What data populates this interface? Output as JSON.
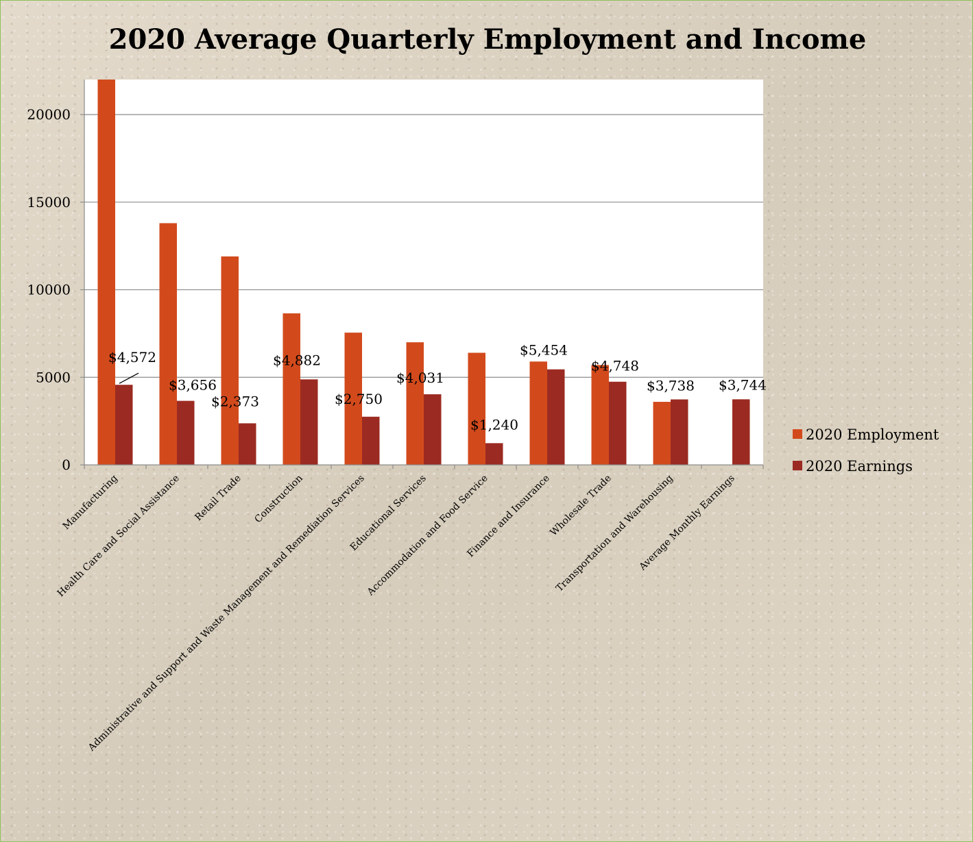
{
  "chart_data": {
    "type": "bar",
    "title": "2020 Average Quarterly Employment and Income",
    "categories": [
      "Manufacturing",
      "Health Care and Social Assistance",
      "Retail Trade",
      "Construction",
      "Administrative and Support and Waste Management and Remediation Services",
      "Educational Services",
      "Accommodation and Food Service",
      "Finance and Insurance",
      "Wholesale Trade",
      "Transportation and Warehousing",
      "Average Monthly Earnings"
    ],
    "series": [
      {
        "name": "2020 Employment",
        "color": "#d24a1c",
        "values": [
          22000,
          13800,
          11900,
          8650,
          7550,
          7000,
          6400,
          5900,
          5700,
          3600,
          null
        ]
      },
      {
        "name": "2020 Earnings",
        "color": "#9b2b22",
        "values": [
          4572,
          3656,
          2373,
          4882,
          2750,
          4031,
          1240,
          5454,
          4748,
          3738,
          3744
        ],
        "data_labels": [
          "$4,572",
          "$3,656",
          "$2,373",
          "$4,882",
          "$2,750",
          "$4,031",
          "$1,240",
          "$5,454",
          "$4,748",
          "$3,738",
          "$3,744"
        ]
      }
    ],
    "ylim": [
      0,
      22000
    ],
    "yticks": [
      0,
      5000,
      10000,
      15000,
      20000
    ],
    "xlabel": "",
    "ylabel": "",
    "grid": true,
    "legend_position": "right"
  }
}
